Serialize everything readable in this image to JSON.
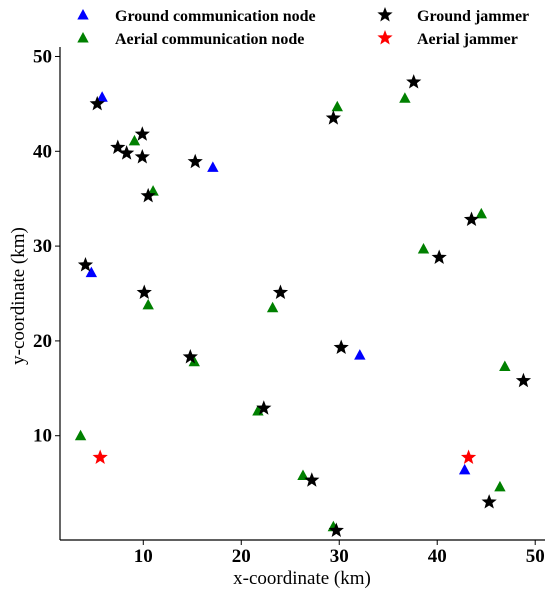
{
  "chart_data": {
    "type": "scatter",
    "xlabel": "x-coordinate (km)",
    "ylabel": "y-coordinate (km)",
    "xlim": [
      1.5,
      51
    ],
    "ylim": [
      -1,
      51
    ],
    "xticks": [
      10,
      20,
      30,
      40,
      50
    ],
    "yticks": [
      10,
      20,
      30,
      40,
      50
    ],
    "grid": false,
    "legend_position": "top",
    "series": [
      {
        "name": "Ground communication node",
        "marker": "triangle",
        "color": "#0000ff",
        "points": [
          [
            5.8,
            45.7
          ],
          [
            17.1,
            38.3
          ],
          [
            4.7,
            27.2
          ],
          [
            32.1,
            18.5
          ],
          [
            42.8,
            6.4
          ]
        ]
      },
      {
        "name": "Aerial communication node",
        "marker": "triangle",
        "color": "#008000",
        "points": [
          [
            29.8,
            44.7
          ],
          [
            36.7,
            45.6
          ],
          [
            9.1,
            41.1
          ],
          [
            11.0,
            35.8
          ],
          [
            38.6,
            29.7
          ],
          [
            44.5,
            33.4
          ],
          [
            10.5,
            23.8
          ],
          [
            23.2,
            23.5
          ],
          [
            15.2,
            17.8
          ],
          [
            46.9,
            17.3
          ],
          [
            21.7,
            12.6
          ],
          [
            3.6,
            10.0
          ],
          [
            26.3,
            5.8
          ],
          [
            46.4,
            4.6
          ],
          [
            29.4,
            0.4
          ]
        ]
      },
      {
        "name": "Ground jammer",
        "marker": "star",
        "color": "#000000",
        "points": [
          [
            37.6,
            47.3
          ],
          [
            5.3,
            45.0
          ],
          [
            29.4,
            43.5
          ],
          [
            9.9,
            41.8
          ],
          [
            7.4,
            40.4
          ],
          [
            8.3,
            39.8
          ],
          [
            9.9,
            39.4
          ],
          [
            15.3,
            38.9
          ],
          [
            10.5,
            35.3
          ],
          [
            43.5,
            32.8
          ],
          [
            40.2,
            28.8
          ],
          [
            4.1,
            28.0
          ],
          [
            10.1,
            25.1
          ],
          [
            24.0,
            25.1
          ],
          [
            30.2,
            19.3
          ],
          [
            14.8,
            18.3
          ],
          [
            48.8,
            15.8
          ],
          [
            22.3,
            12.9
          ],
          [
            27.2,
            5.3
          ],
          [
            45.3,
            3.0
          ],
          [
            29.7,
            0.0
          ]
        ]
      },
      {
        "name": "Aerial jammer",
        "marker": "star",
        "color": "#ff0000",
        "points": [
          [
            5.6,
            7.7
          ],
          [
            43.2,
            7.7
          ]
        ]
      }
    ]
  }
}
